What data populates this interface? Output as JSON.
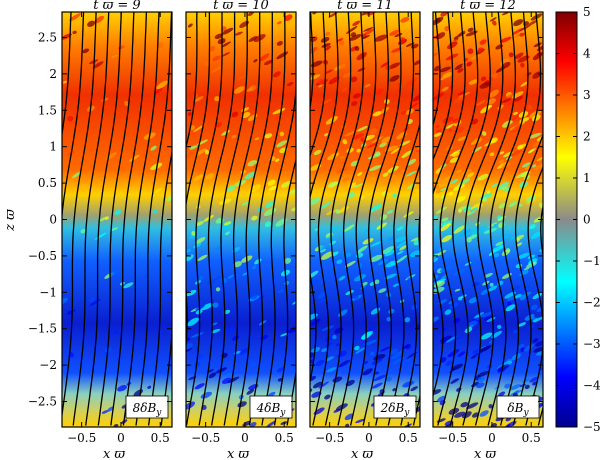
{
  "chart_data": {
    "type": "heatmap",
    "panels": [
      {
        "title": "t ϖ = 9",
        "label": "8δB",
        "label_sub": "y",
        "field_amplitude": 0.25
      },
      {
        "title": "t ϖ = 10",
        "label": "4δB",
        "label_sub": "y",
        "field_amplitude": 0.45
      },
      {
        "title": "t ϖ = 11",
        "label": "2δB",
        "label_sub": "y",
        "field_amplitude": 0.7
      },
      {
        "title": "t ϖ = 12",
        "label": "δB",
        "label_sub": "y",
        "field_amplitude": 0.9
      }
    ],
    "xlabel": "x ϖ",
    "ylabel": "z ϖ",
    "xlim": [
      -0.75,
      0.65
    ],
    "ylim": [
      -2.85,
      2.85
    ],
    "xticks": [
      -0.5,
      0,
      0.5
    ],
    "xtick_labels": [
      "−0.5",
      "0",
      "0.5"
    ],
    "yticks": [
      2.5,
      2,
      1.5,
      1,
      0.5,
      0,
      -0.5,
      -1,
      -1.5,
      -2,
      -2.5
    ],
    "ytick_labels": [
      "2.5",
      "2",
      "1.5",
      "1",
      "0.5",
      "0",
      "−0.5",
      "−1",
      "−1.5",
      "−2",
      "−2.5"
    ],
    "colorbar": {
      "range": [
        -5,
        5
      ],
      "ticks": [
        5,
        4,
        3,
        2,
        1,
        0,
        -1,
        -2,
        -3,
        -4,
        -5
      ],
      "tick_labels": [
        "5",
        "4",
        "3",
        "2",
        "1",
        "0",
        "−1",
        "−2",
        "−3",
        "−4",
        "−5"
      ],
      "colormap": "jet"
    },
    "grid": false
  }
}
